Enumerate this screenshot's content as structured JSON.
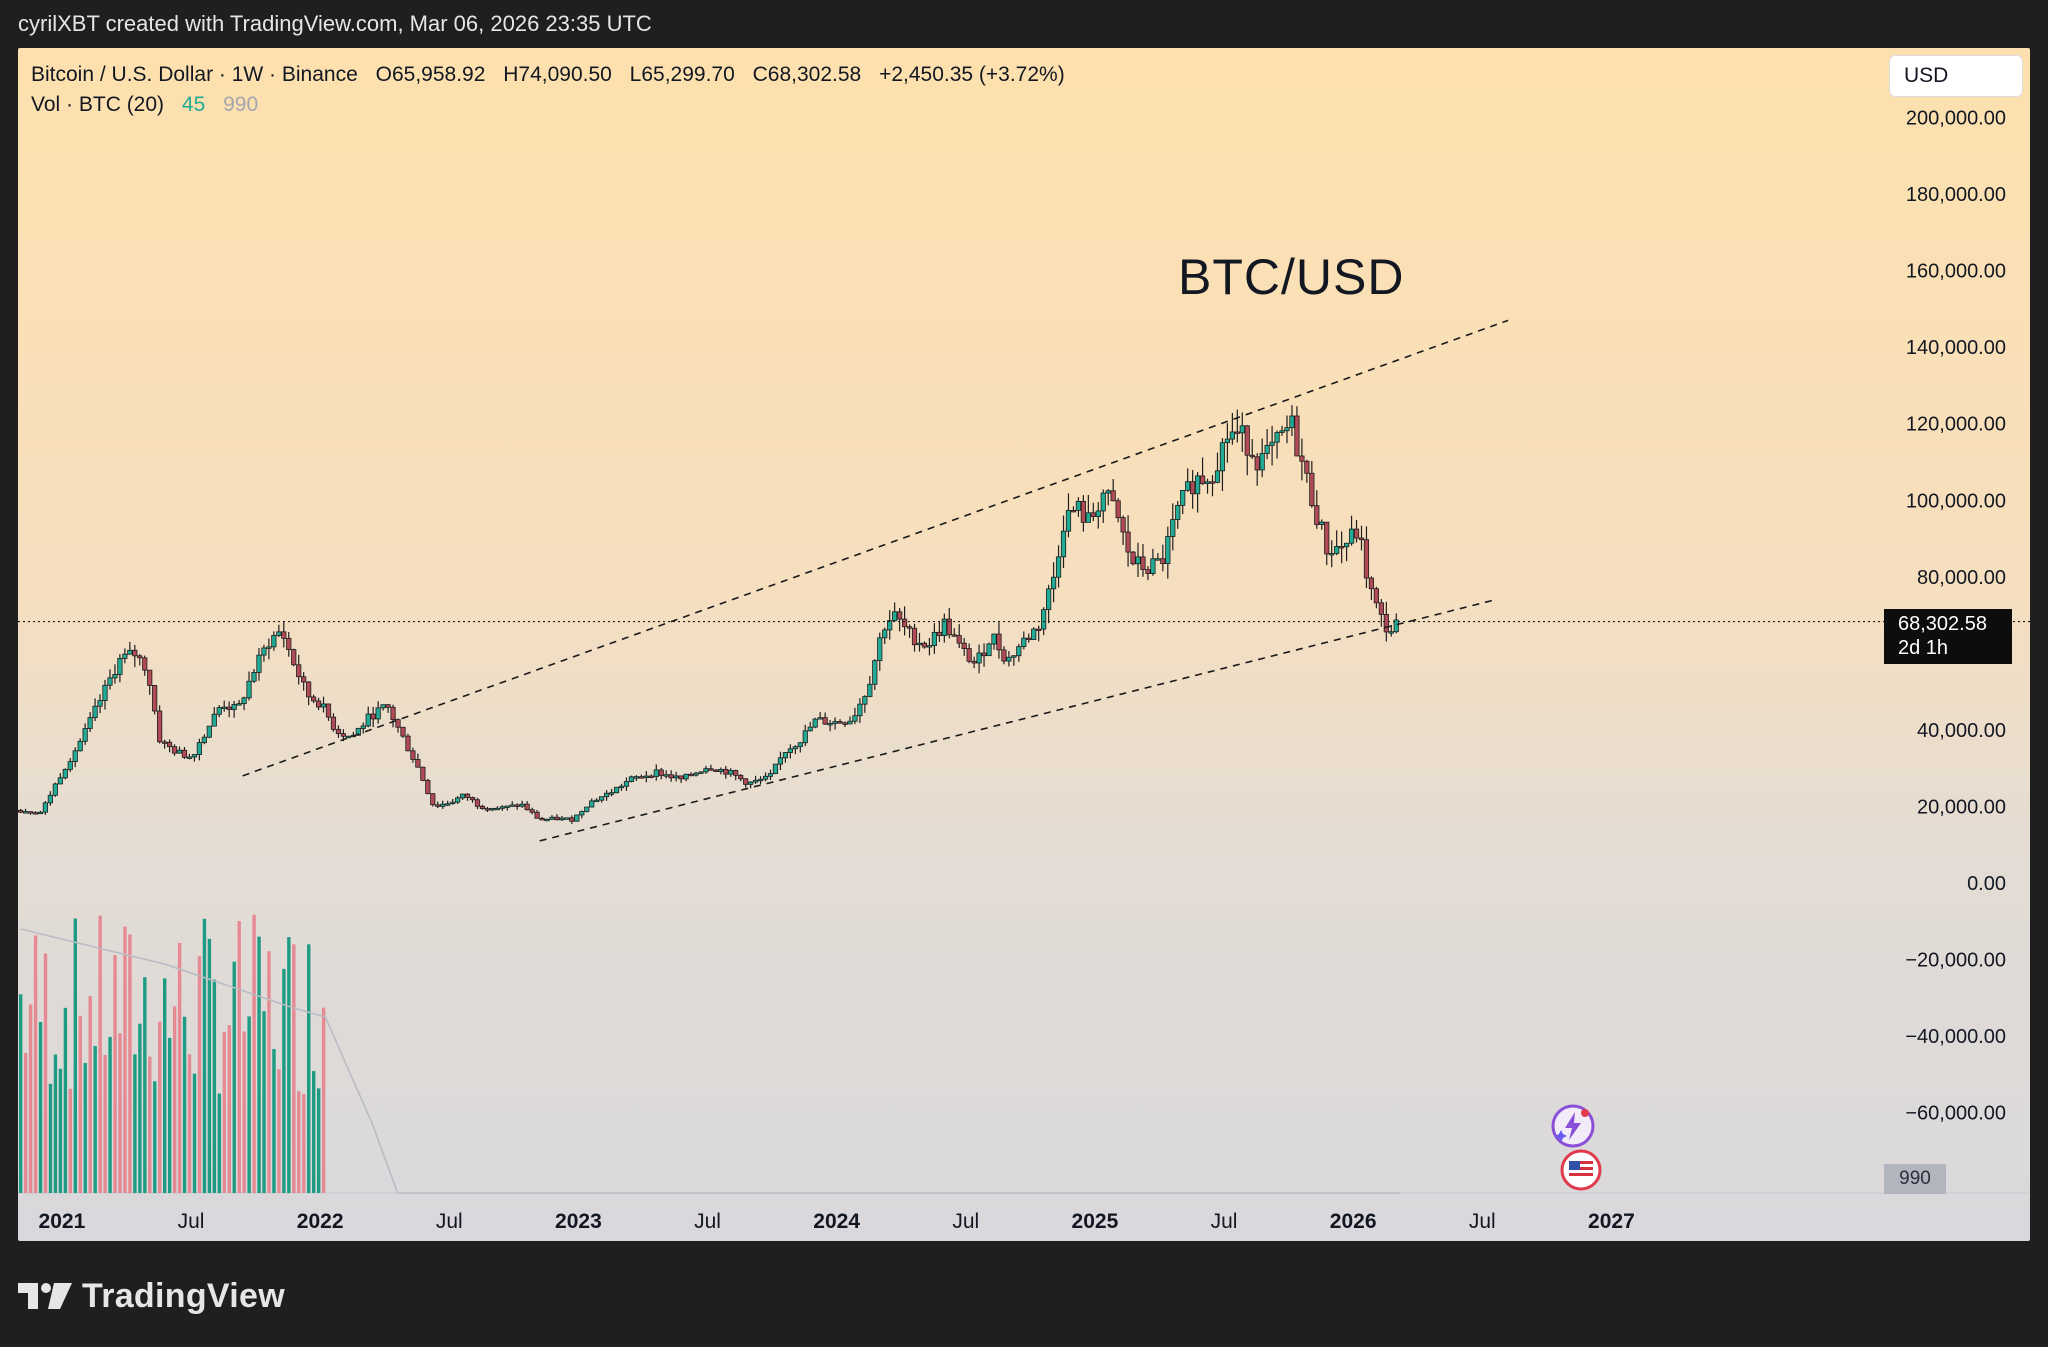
{
  "banner": {
    "text": "cyrilXBT created with TradingView.com, Mar 06, 2026 23:35 UTC"
  },
  "legend": {
    "symbol": "Bitcoin / U.S. Dollar · 1W · Binance",
    "open": "O65,958.92",
    "high": "H74,090.50",
    "low": "L65,299.70",
    "close": "C68,302.58",
    "change": "+2,450.35 (+3.72%)",
    "volume_label": "Vol · BTC (20)",
    "volume_value": "45",
    "volume_ma": "990"
  },
  "currency": "USD",
  "title": "BTC/USD",
  "price_label": {
    "price": "68,302.58",
    "countdown": "2d 1h"
  },
  "volume_axis_label": "990",
  "brand": "TradingView",
  "colors": {
    "up": "#22ab94",
    "down": "#b04a57",
    "vol_up": "#1e9c83",
    "vol_down": "#e58a93",
    "ma": "#b9bcc4"
  },
  "icons": [
    "lightning-badge-icon",
    "us-flag-icon"
  ],
  "chart_data": {
    "type": "candlestick",
    "title": "BTC/USD",
    "interval": "1W",
    "exchange": "Binance",
    "ylim": [
      -80000,
      210000
    ],
    "y_ticks": [
      200000,
      180000,
      160000,
      140000,
      120000,
      100000,
      80000,
      40000,
      20000,
      0,
      -20000,
      -40000,
      -60000
    ],
    "y_tick_labels": [
      "200,000.00",
      "180,000.00",
      "160,000.00",
      "140,000.00",
      "120,000.00",
      "100,000.00",
      "80,000.00",
      "40,000.00",
      "20,000.00",
      "0.00",
      "−20,000.00",
      "−40,000.00",
      "−60,000.00"
    ],
    "x_ticks": [
      {
        "label": "2021",
        "t": 2021.0,
        "bold": true
      },
      {
        "label": "Jul",
        "t": 2021.5,
        "bold": false
      },
      {
        "label": "2022",
        "t": 2022.0,
        "bold": true
      },
      {
        "label": "Jul",
        "t": 2022.5,
        "bold": false
      },
      {
        "label": "2023",
        "t": 2023.0,
        "bold": true
      },
      {
        "label": "Jul",
        "t": 2023.5,
        "bold": false
      },
      {
        "label": "2024",
        "t": 2024.0,
        "bold": true
      },
      {
        "label": "Jul",
        "t": 2024.5,
        "bold": false
      },
      {
        "label": "2025",
        "t": 2025.0,
        "bold": true
      },
      {
        "label": "Jul",
        "t": 2025.5,
        "bold": false
      },
      {
        "label": "2026",
        "t": 2026.0,
        "bold": true
      },
      {
        "label": "Jul",
        "t": 2026.5,
        "bold": false
      },
      {
        "label": "2027",
        "t": 2027.0,
        "bold": true
      }
    ],
    "x_range": [
      2020.83,
      2027.8
    ],
    "close_path": [
      [
        2020.84,
        19000
      ],
      [
        2020.92,
        18500
      ],
      [
        2021.0,
        29000
      ],
      [
        2021.08,
        38000
      ],
      [
        2021.15,
        48000
      ],
      [
        2021.22,
        58000
      ],
      [
        2021.28,
        60000
      ],
      [
        2021.33,
        56000
      ],
      [
        2021.38,
        37000
      ],
      [
        2021.45,
        34000
      ],
      [
        2021.5,
        33000
      ],
      [
        2021.56,
        40000
      ],
      [
        2021.62,
        47000
      ],
      [
        2021.68,
        45000
      ],
      [
        2021.74,
        55000
      ],
      [
        2021.8,
        63000
      ],
      [
        2021.85,
        66000
      ],
      [
        2021.9,
        57000
      ],
      [
        2021.95,
        49000
      ],
      [
        2022.0,
        47000
      ],
      [
        2022.06,
        40000
      ],
      [
        2022.12,
        38000
      ],
      [
        2022.2,
        44000
      ],
      [
        2022.26,
        46000
      ],
      [
        2022.32,
        38000
      ],
      [
        2022.38,
        30000
      ],
      [
        2022.44,
        20000
      ],
      [
        2022.5,
        21000
      ],
      [
        2022.56,
        23000
      ],
      [
        2022.62,
        20000
      ],
      [
        2022.7,
        19500
      ],
      [
        2022.78,
        20500
      ],
      [
        2022.85,
        16500
      ],
      [
        2022.92,
        16800
      ],
      [
        2022.98,
        16600
      ],
      [
        2023.04,
        21000
      ],
      [
        2023.12,
        23500
      ],
      [
        2023.2,
        27000
      ],
      [
        2023.3,
        29000
      ],
      [
        2023.4,
        27000
      ],
      [
        2023.5,
        30500
      ],
      [
        2023.58,
        29000
      ],
      [
        2023.66,
        26000
      ],
      [
        2023.74,
        27500
      ],
      [
        2023.8,
        34500
      ],
      [
        2023.86,
        37500
      ],
      [
        2023.92,
        42500
      ],
      [
        2024.0,
        42000
      ],
      [
        2024.06,
        43000
      ],
      [
        2024.12,
        51000
      ],
      [
        2024.18,
        67000
      ],
      [
        2024.22,
        70000
      ],
      [
        2024.28,
        65000
      ],
      [
        2024.35,
        62000
      ],
      [
        2024.42,
        68000
      ],
      [
        2024.48,
        61000
      ],
      [
        2024.54,
        57000
      ],
      [
        2024.6,
        65000
      ],
      [
        2024.66,
        58000
      ],
      [
        2024.72,
        63000
      ],
      [
        2024.78,
        67000
      ],
      [
        2024.84,
        80000
      ],
      [
        2024.88,
        95000
      ],
      [
        2024.93,
        98000
      ],
      [
        2024.98,
        94000
      ],
      [
        2025.03,
        102000
      ],
      [
        2025.08,
        97000
      ],
      [
        2025.14,
        84000
      ],
      [
        2025.2,
        82000
      ],
      [
        2025.26,
        84000
      ],
      [
        2025.32,
        97000
      ],
      [
        2025.38,
        105000
      ],
      [
        2025.45,
        107000
      ],
      [
        2025.52,
        118000
      ],
      [
        2025.58,
        116000
      ],
      [
        2025.64,
        110000
      ],
      [
        2025.7,
        114000
      ],
      [
        2025.76,
        120000
      ],
      [
        2025.8,
        110000
      ],
      [
        2025.86,
        96000
      ],
      [
        2025.9,
        87000
      ],
      [
        2025.96,
        88000
      ],
      [
        2026.02,
        92000
      ],
      [
        2026.06,
        78000
      ],
      [
        2026.1,
        70000
      ],
      [
        2026.14,
        65500
      ],
      [
        2026.18,
        68300
      ]
    ],
    "volume_ma_path": [
      [
        2020.84,
        30
      ],
      [
        2021.4,
        26
      ],
      [
        2021.9,
        21
      ],
      [
        2022.02,
        20
      ],
      [
        2022.2,
        8
      ],
      [
        2022.3,
        0
      ],
      [
        2026.18,
        0
      ]
    ],
    "trendlines": [
      {
        "name": "upper-channel",
        "from": [
          2021.7,
          28000
        ],
        "to": [
          2026.6,
          147000
        ]
      },
      {
        "name": "lower-channel",
        "from": [
          2022.85,
          11000
        ],
        "to": [
          2026.55,
          74000
        ]
      }
    ],
    "last_price": 68302.58
  }
}
